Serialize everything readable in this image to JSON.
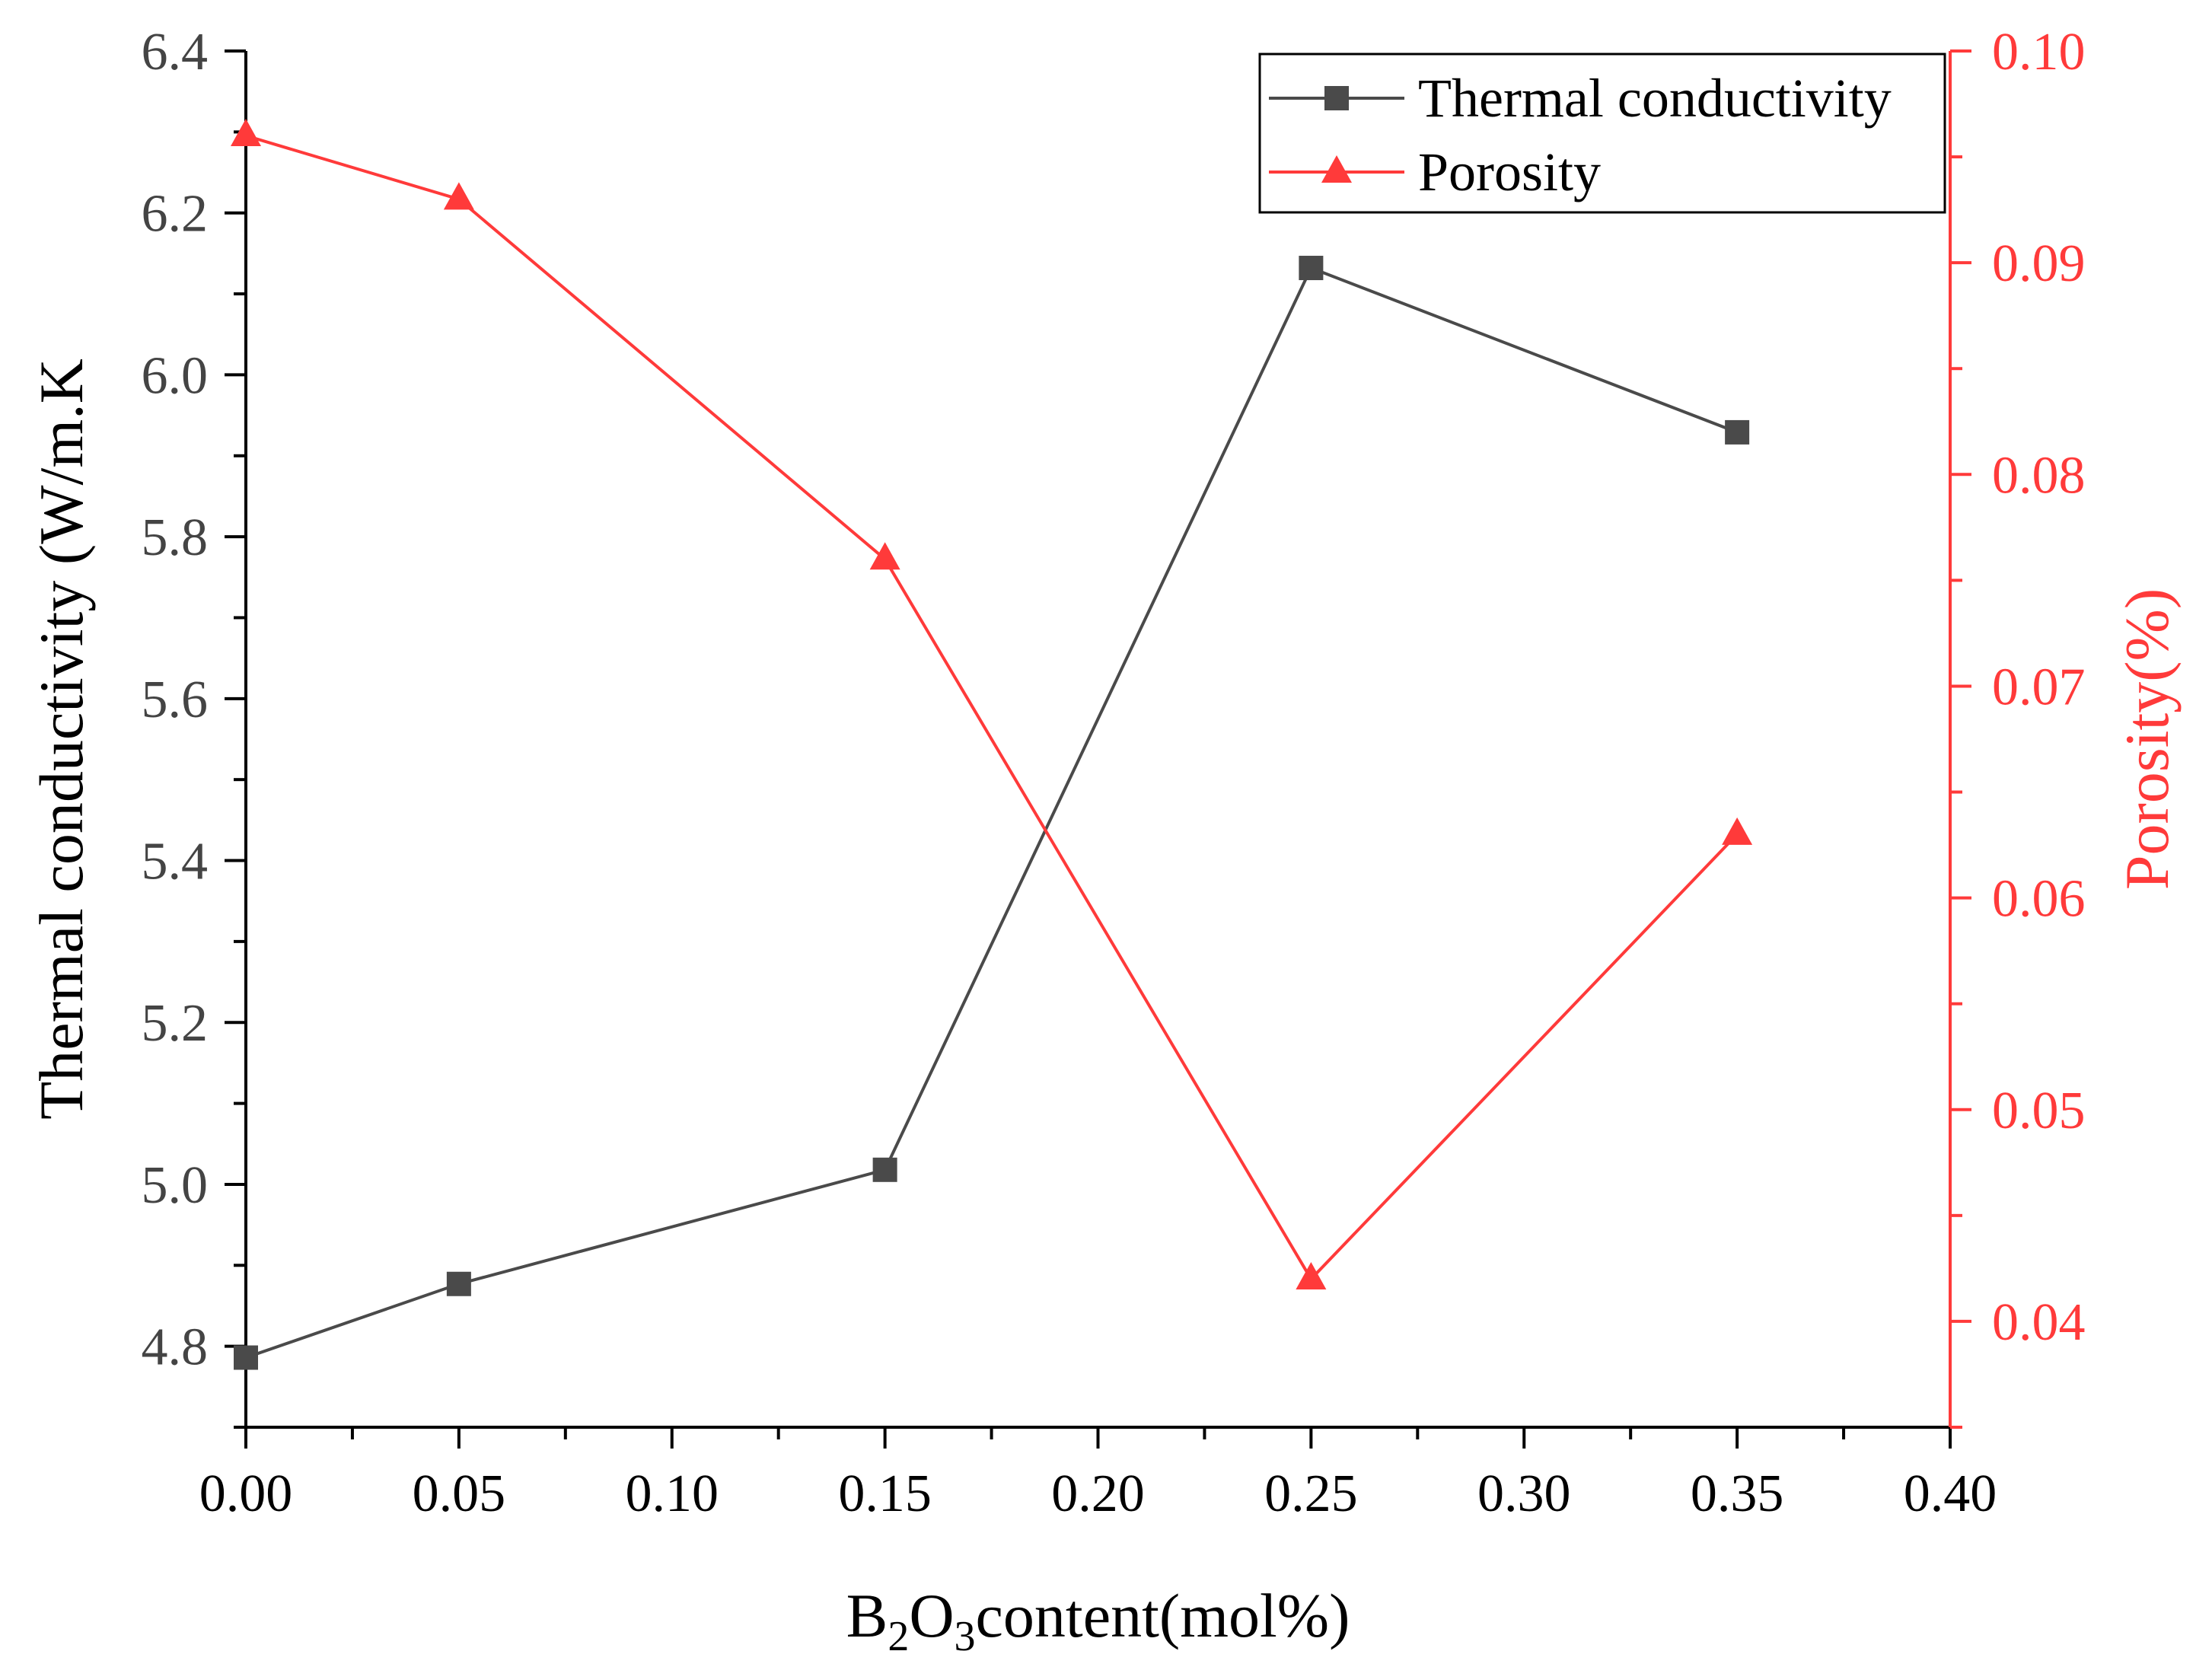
{
  "colors": {
    "series_tc": "#4a4a4a",
    "series_por": "#ff3a3a",
    "axis_left": "#000000",
    "axis_right": "#ff3a3a"
  },
  "chart_data": {
    "type": "line",
    "xlabel_main": "content(mol%)",
    "xlabel_prefix": "B",
    "xlabel_sub1": "2",
    "xlabel_mid": "O",
    "xlabel_sub2": "3",
    "ylabel_left": "Thermal conductivity (W/m.K",
    "ylabel_right": "Porosity(%)",
    "xlim": [
      0.0,
      0.4
    ],
    "ylim_left": [
      4.7,
      6.4
    ],
    "ylim_right": [
      0.035,
      0.1
    ],
    "x_ticks": [
      "0.00",
      "0.05",
      "0.10",
      "0.15",
      "0.20",
      "0.25",
      "0.30",
      "0.35",
      "0.40"
    ],
    "y_left_ticks": [
      "4.8",
      "5.0",
      "5.2",
      "5.4",
      "5.6",
      "5.8",
      "6.0",
      "6.2",
      "6.4"
    ],
    "y_right_ticks": [
      "0.04",
      "0.05",
      "0.06",
      "0.07",
      "0.08",
      "0.09",
      "0.10"
    ],
    "series": [
      {
        "name": "Thermal conductivity",
        "axis": "left",
        "marker": "square",
        "x": [
          0.0,
          0.05,
          0.15,
          0.25,
          0.35
        ],
        "values": [
          4.786,
          4.877,
          5.018,
          6.132,
          5.929
        ]
      },
      {
        "name": "Porosity",
        "axis": "right",
        "marker": "triangle",
        "x": [
          0.0,
          0.05,
          0.15,
          0.25,
          0.35
        ],
        "values": [
          0.096,
          0.093,
          0.076,
          0.042,
          0.063
        ]
      }
    ],
    "legend": {
      "position": "top-right",
      "items": [
        "Thermal conductivity",
        "Porosity"
      ]
    }
  }
}
